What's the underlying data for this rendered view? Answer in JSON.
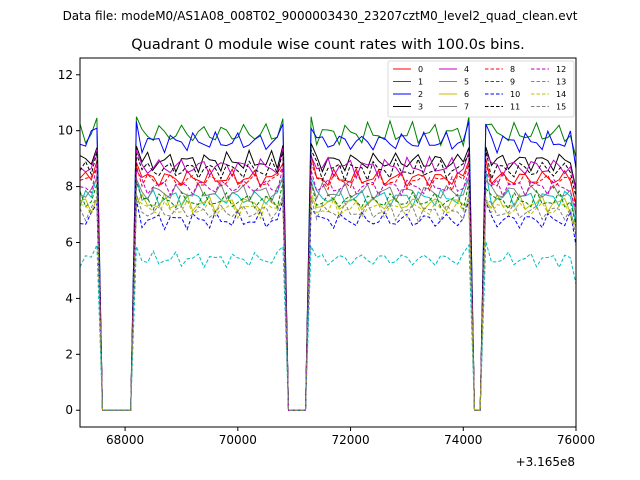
{
  "chart_data": {
    "type": "line",
    "suptitle": "Data file: modeM0/AS1A08_008T02_9000003430_23207cztM0_level2_quad_clean.evt",
    "title": "Quadrant 0 module wise count rates with 100.0s bins.",
    "xlabel": "",
    "ylabel": "",
    "x_offset_label": "+3.165e8",
    "xlim": [
      67200,
      76000
    ],
    "ylim": [
      -0.6,
      12.6
    ],
    "xticks": [
      68000,
      70000,
      72000,
      74000,
      76000
    ],
    "xtick_labels": [
      "68000",
      "70000",
      "72000",
      "74000",
      "76000"
    ],
    "yticks": [
      0,
      2,
      4,
      6,
      8,
      10,
      12
    ],
    "ytick_labels": [
      "0",
      "2",
      "4",
      "6",
      "8",
      "10",
      "12"
    ],
    "grid": false,
    "legend_placement": "top-right",
    "x_start": 67200,
    "x_step": 100,
    "gaps": [
      [
        67600,
        68100
      ],
      [
        70900,
        71200
      ],
      [
        74200,
        74300
      ]
    ],
    "series": [
      {
        "name": "0",
        "color": "#ff0000",
        "dash": "solid",
        "level": 8.3,
        "wiggle": 0.35,
        "edge": 9.0
      },
      {
        "name": "1",
        "color": "#008000",
        "dash": "solid",
        "level": 9.9,
        "wiggle": 0.45,
        "edge": 10.4
      },
      {
        "name": "2",
        "color": "#0000ff",
        "dash": "solid",
        "level": 9.6,
        "wiggle": 0.4,
        "edge": 10.2
      },
      {
        "name": "3",
        "color": "#000000",
        "dash": "solid",
        "level": 8.9,
        "wiggle": 0.4,
        "edge": 9.5
      },
      {
        "name": "4",
        "color": "#c000c0",
        "dash": "solid",
        "level": 8.7,
        "wiggle": 0.4,
        "edge": 9.2
      },
      {
        "name": "5",
        "color": "#00bfbf",
        "dash": "solid",
        "level": 7.6,
        "wiggle": 0.35,
        "edge": 8.4
      },
      {
        "name": "6",
        "color": "#bfbf00",
        "dash": "solid",
        "level": 7.4,
        "wiggle": 0.35,
        "edge": 7.5
      },
      {
        "name": "7",
        "color": "#808080",
        "dash": "solid",
        "level": 7.8,
        "wiggle": 0.35,
        "edge": 8.2
      },
      {
        "name": "8",
        "color": "#ff0000",
        "dash": "dashed",
        "level": 8.2,
        "wiggle": 0.35,
        "edge": 8.8
      },
      {
        "name": "9",
        "color": "#008000",
        "dash": "dashed",
        "level": 7.5,
        "wiggle": 0.35,
        "edge": 8.1
      },
      {
        "name": "10",
        "color": "#0000ff",
        "dash": "dashed",
        "level": 6.8,
        "wiggle": 0.35,
        "edge": 7.4
      },
      {
        "name": "11",
        "color": "#000000",
        "dash": "dashed",
        "level": 8.6,
        "wiggle": 0.4,
        "edge": 9.3
      },
      {
        "name": "12",
        "color": "#c000c0",
        "dash": "dashed",
        "level": 8.0,
        "wiggle": 0.35,
        "edge": 8.6
      },
      {
        "name": "13",
        "color": "#00bfbf",
        "dash": "dashed",
        "level": 5.4,
        "wiggle": 0.3,
        "edge": 5.9
      },
      {
        "name": "14",
        "color": "#bfbf00",
        "dash": "dashed",
        "level": 7.2,
        "wiggle": 0.35,
        "edge": 7.7
      },
      {
        "name": "15",
        "color": "#808080",
        "dash": "dashed",
        "level": 7.1,
        "wiggle": 0.35,
        "edge": 7.6
      }
    ]
  }
}
